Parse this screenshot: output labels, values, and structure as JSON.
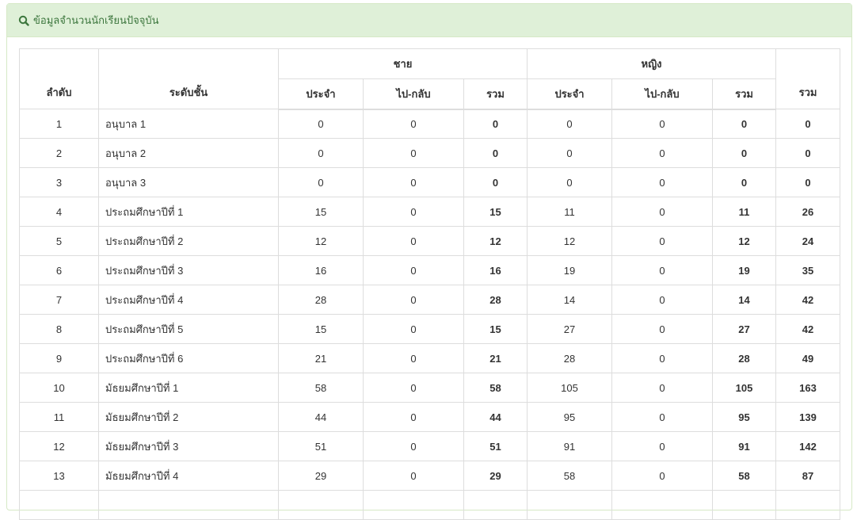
{
  "panel": {
    "title": "ข้อมูลจำนวนนักเรียนปัจจุบัน",
    "icon": "search-icon",
    "heading_bg": "#dff0d8",
    "heading_color": "#3c763d"
  },
  "table": {
    "headers": {
      "no": "ลำดับ",
      "level": "ระดับชั้น",
      "male": "ชาย",
      "female": "หญิง",
      "boarding": "ประจำ",
      "day": "ไป-กลับ",
      "sum": "รวม",
      "total": "รวม"
    },
    "rows": [
      [
        "1",
        "อนุบาล 1",
        "0",
        "0",
        "0",
        "0",
        "0",
        "0",
        "0"
      ],
      [
        "2",
        "อนุบาล 2",
        "0",
        "0",
        "0",
        "0",
        "0",
        "0",
        "0"
      ],
      [
        "3",
        "อนุบาล 3",
        "0",
        "0",
        "0",
        "0",
        "0",
        "0",
        "0"
      ],
      [
        "4",
        "ประถมศึกษาปีที่ 1",
        "15",
        "0",
        "15",
        "11",
        "0",
        "11",
        "26"
      ],
      [
        "5",
        "ประถมศึกษาปีที่ 2",
        "12",
        "0",
        "12",
        "12",
        "0",
        "12",
        "24"
      ],
      [
        "6",
        "ประถมศึกษาปีที่ 3",
        "16",
        "0",
        "16",
        "19",
        "0",
        "19",
        "35"
      ],
      [
        "7",
        "ประถมศึกษาปีที่ 4",
        "28",
        "0",
        "28",
        "14",
        "0",
        "14",
        "42"
      ],
      [
        "8",
        "ประถมศึกษาปีที่ 5",
        "15",
        "0",
        "15",
        "27",
        "0",
        "27",
        "42"
      ],
      [
        "9",
        "ประถมศึกษาปีที่ 6",
        "21",
        "0",
        "21",
        "28",
        "0",
        "28",
        "49"
      ],
      [
        "10",
        "มัธยมศึกษาปีที่ 1",
        "58",
        "0",
        "58",
        "105",
        "0",
        "105",
        "163"
      ],
      [
        "11",
        "มัธยมศึกษาปีที่ 2",
        "44",
        "0",
        "44",
        "95",
        "0",
        "95",
        "139"
      ],
      [
        "12",
        "มัธยมศึกษาปีที่ 3",
        "51",
        "0",
        "51",
        "91",
        "0",
        "91",
        "142"
      ],
      [
        "13",
        "มัธยมศึกษาปีที่ 4",
        "29",
        "0",
        "29",
        "58",
        "0",
        "58",
        "87"
      ]
    ]
  }
}
